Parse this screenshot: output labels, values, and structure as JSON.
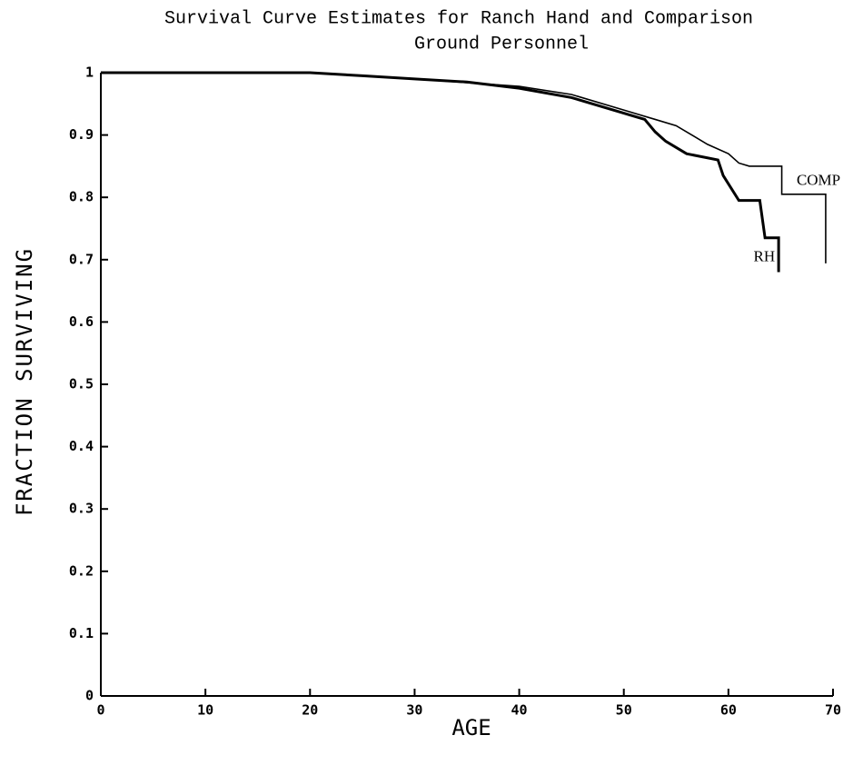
{
  "chart_data": {
    "type": "line",
    "title": [
      "Survival Curve Estimates for Ranch Hand and Comparison",
      "Ground Personnel"
    ],
    "x_label": "AGE",
    "y_label": "FRACTION SURVIVING",
    "xlim": [
      0,
      70
    ],
    "ylim": [
      0,
      1
    ],
    "xticks": [
      0,
      10,
      20,
      30,
      40,
      50,
      60,
      70
    ],
    "yticks": [
      0,
      0.1,
      0.2,
      0.3,
      0.4,
      0.5,
      0.6,
      0.7,
      0.8,
      0.9,
      1
    ],
    "series": [
      {
        "name": "RH",
        "color": "#000000",
        "x": [
          0,
          20,
          25,
          30,
          35,
          40,
          45,
          50,
          52,
          53,
          54,
          56,
          59,
          59.5,
          61,
          63,
          63.5,
          64.8,
          64.8
        ],
        "values": [
          1,
          1,
          0.995,
          0.99,
          0.985,
          0.975,
          0.96,
          0.935,
          0.925,
          0.905,
          0.89,
          0.87,
          0.86,
          0.835,
          0.795,
          0.795,
          0.735,
          0.735,
          0.68
        ]
      },
      {
        "name": "COMP",
        "color": "#000000",
        "x": [
          0,
          20,
          30,
          40,
          45,
          50,
          53,
          55,
          58,
          60,
          61,
          62,
          65.1,
          65.1,
          69.3,
          69.3
        ],
        "values": [
          1,
          1,
          0.99,
          0.978,
          0.965,
          0.94,
          0.925,
          0.915,
          0.885,
          0.87,
          0.855,
          0.85,
          0.85,
          0.805,
          0.805,
          0.694
        ]
      }
    ]
  }
}
